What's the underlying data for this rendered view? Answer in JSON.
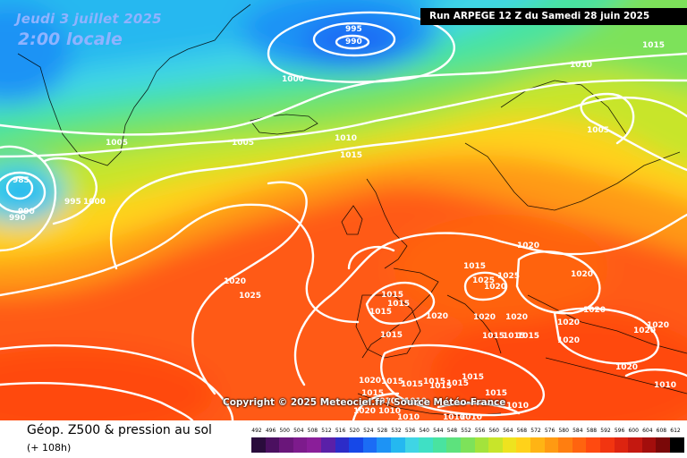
{
  "header": {
    "date": "Jeudi 3 juillet 2025",
    "time": "2:00 locale",
    "run": "Run ARPEGE 12 Z du Samedi 28 juin 2025"
  },
  "map": {
    "copyright": "Copyright © 2025 Meteociel.fr / Source Météo-France",
    "pressure_labels": [
      "995",
      "990",
      "1000",
      "1015",
      "1010",
      "1005",
      "1005",
      "1005",
      "1010",
      "1015",
      "985",
      "990",
      "990",
      "995",
      "1000",
      "1020",
      "1025",
      "1015",
      "1015",
      "1015",
      "1025",
      "1020",
      "1020",
      "1020",
      "1020",
      "1025",
      "1020",
      "1020",
      "1020",
      "1020",
      "1020",
      "1020",
      "1020",
      "1015",
      "1015",
      "1015",
      "1015",
      "1015",
      "1015",
      "1015",
      "1015",
      "1015",
      "1020",
      "1010",
      "1010",
      "1010",
      "1010",
      "1010",
      "1010",
      "1020",
      "1020",
      "1015",
      "1015",
      "1015",
      "1015",
      "1010",
      "1010"
    ]
  },
  "legend": {
    "title": "Géop. Z500 & pression au sol",
    "subtitle": "(+ 108h)",
    "ticks": [
      "492",
      "496",
      "500",
      "504",
      "508",
      "512",
      "516",
      "520",
      "524",
      "528",
      "532",
      "536",
      "540",
      "544",
      "548",
      "552",
      "556",
      "560",
      "564",
      "568",
      "572",
      "576",
      "580",
      "584",
      "588",
      "592",
      "596",
      "600",
      "604",
      "608",
      "612"
    ],
    "colors": [
      "#2a0c3c",
      "#4b1060",
      "#6a167a",
      "#7d1b8c",
      "#8a1e99",
      "#5a20a8",
      "#2c2cc8",
      "#1648e8",
      "#1b6cf5",
      "#1d93f5",
      "#25b8f0",
      "#3fd5e5",
      "#3fe0c5",
      "#49e3a0",
      "#5de27d",
      "#7de25a",
      "#a3e33c",
      "#c8e52a",
      "#eee31f",
      "#ffd21a",
      "#ffb414",
      "#ff9a12",
      "#ff7e10",
      "#ff640f",
      "#ff4a10",
      "#f23510",
      "#dd2410",
      "#c41810",
      "#a30e0c",
      "#7a0808",
      "#000000"
    ]
  }
}
